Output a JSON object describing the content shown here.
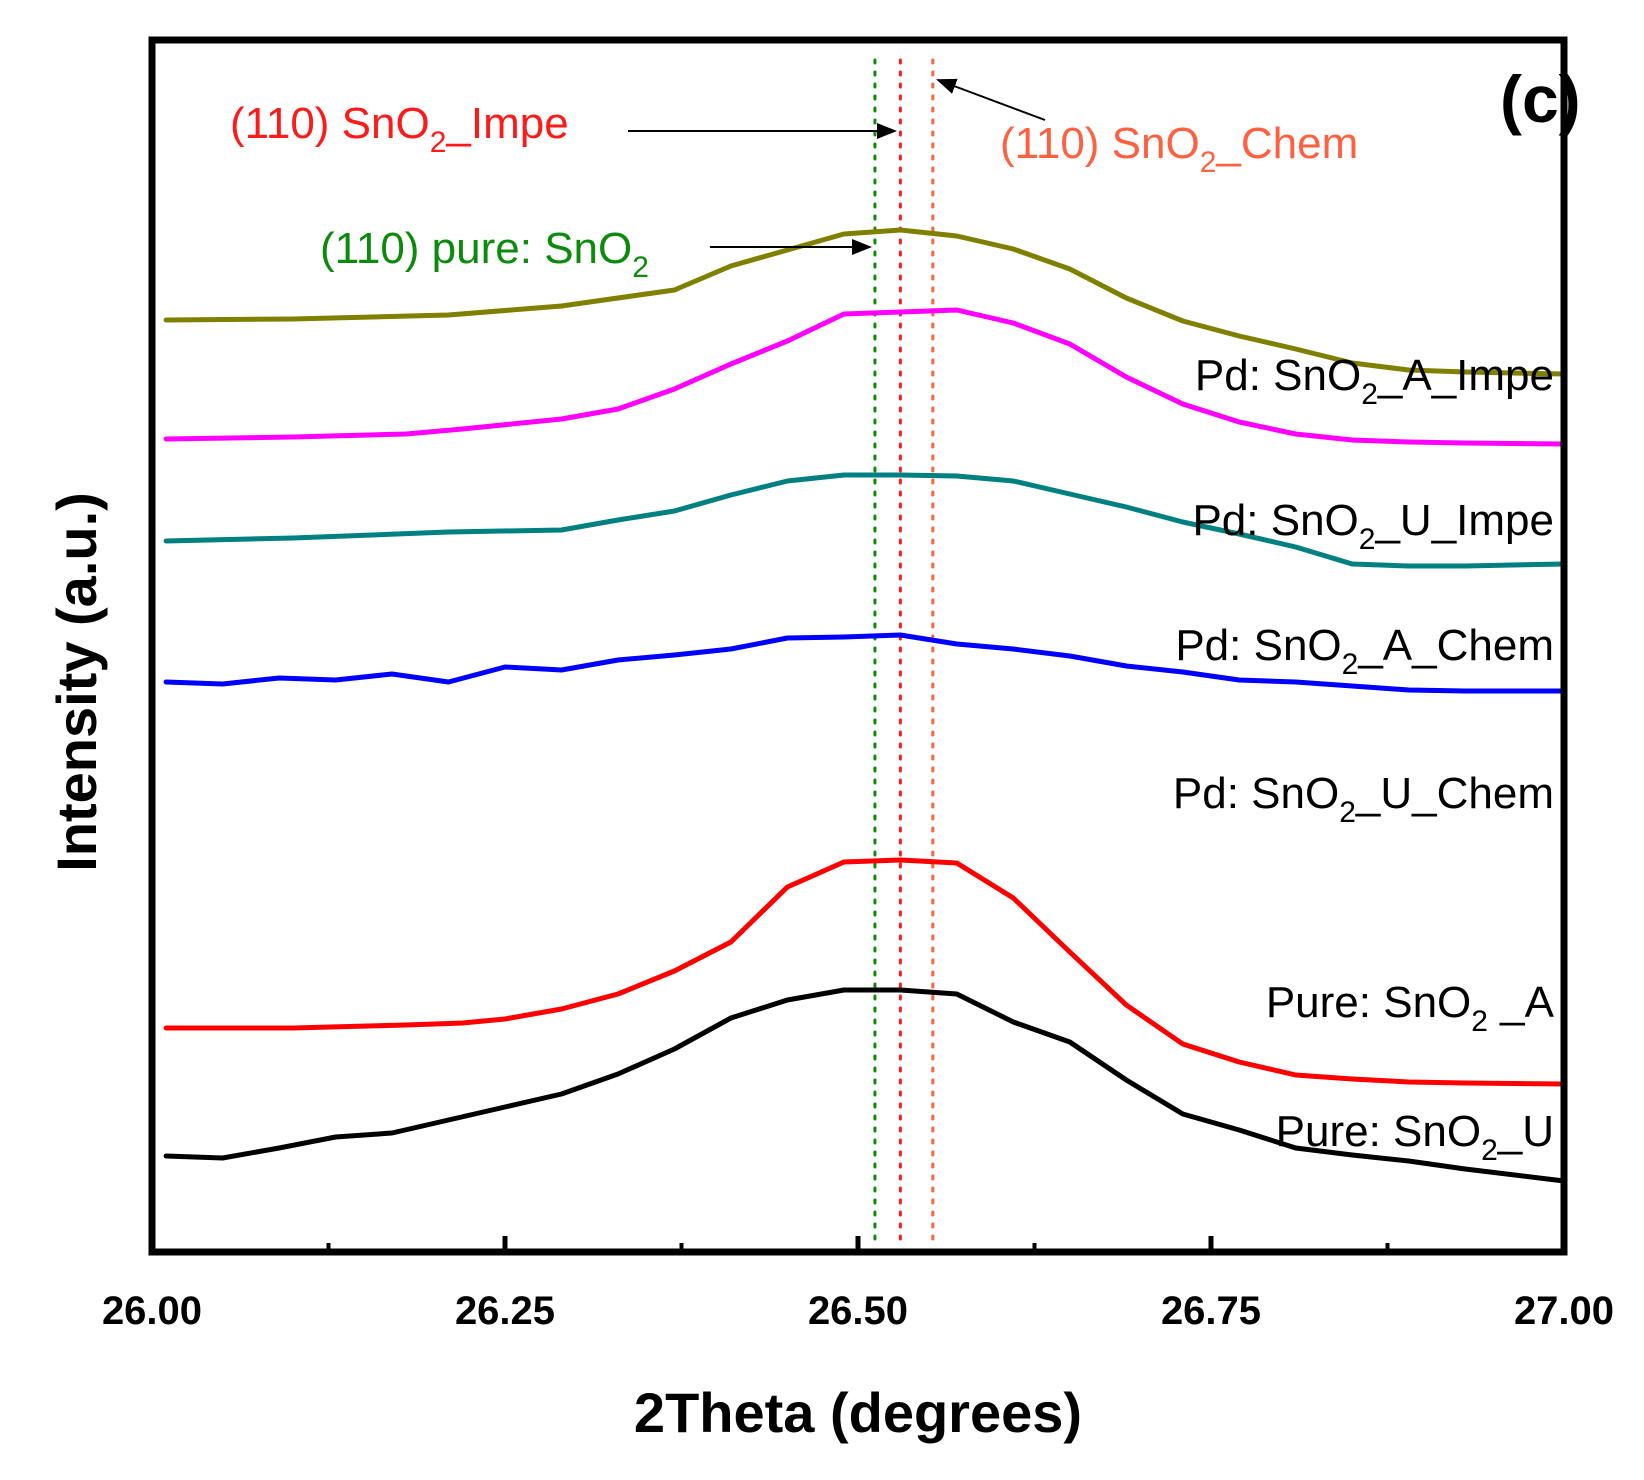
{
  "chart_data": {
    "type": "line",
    "panel_label": "(c)",
    "xlabel": "2Theta (degrees)",
    "ylabel": "Intensity (a.u.)",
    "xlim": [
      26.0,
      27.0
    ],
    "xticks": [
      "26.00",
      "26.25",
      "26.50",
      "26.75",
      "27.00"
    ],
    "y_ticks_shown": false,
    "grid": false,
    "series": [
      {
        "name_main": "Pd: SnO",
        "name_sub": "2",
        "name_tail": "_A_Impe",
        "color": "#808000",
        "x": [
          26.01,
          26.1,
          26.21,
          26.29,
          26.37,
          26.41,
          26.45,
          26.49,
          26.53,
          26.57,
          26.61,
          26.65,
          26.69,
          26.73,
          26.77,
          26.81,
          26.85,
          26.89,
          26.93,
          27.0
        ],
        "y": [
          4.22,
          4.23,
          4.27,
          4.36,
          4.52,
          4.76,
          4.92,
          5.08,
          5.12,
          5.06,
          4.93,
          4.73,
          4.44,
          4.21,
          4.06,
          3.93,
          3.79,
          3.72,
          3.7,
          3.68
        ]
      },
      {
        "name_main": "Pd: SnO",
        "name_sub": "2",
        "name_tail": "_U_Impe",
        "color": "#FF00FF",
        "x": [
          26.01,
          26.1,
          26.18,
          26.22,
          26.29,
          26.33,
          26.37,
          26.41,
          26.45,
          26.49,
          26.53,
          26.57,
          26.61,
          26.65,
          26.69,
          26.73,
          26.77,
          26.81,
          26.85,
          26.89,
          26.93,
          27.0
        ],
        "y": [
          3.03,
          3.05,
          3.08,
          3.13,
          3.23,
          3.33,
          3.53,
          3.78,
          4.01,
          4.28,
          4.3,
          4.32,
          4.19,
          3.98,
          3.65,
          3.38,
          3.2,
          3.08,
          3.02,
          3.0,
          2.99,
          2.98
        ]
      },
      {
        "name_main": "Pd: SnO",
        "name_sub": "2",
        "name_tail": "_A_Chem",
        "color": "#008080",
        "x": [
          26.01,
          26.1,
          26.21,
          26.29,
          26.33,
          26.37,
          26.41,
          26.45,
          26.49,
          26.53,
          26.57,
          26.61,
          26.65,
          26.69,
          26.73,
          26.77,
          26.81,
          26.85,
          26.89,
          26.93,
          27.0
        ],
        "y": [
          2.01,
          2.04,
          2.1,
          2.12,
          2.22,
          2.31,
          2.47,
          2.61,
          2.67,
          2.67,
          2.66,
          2.61,
          2.48,
          2.35,
          2.2,
          2.08,
          1.95,
          1.78,
          1.76,
          1.76,
          1.78
        ]
      },
      {
        "name_main": "Pd: SnO",
        "name_sub": "2",
        "name_tail": "_U_Chem",
        "color": "#0000FF",
        "x": [
          26.01,
          26.05,
          26.09,
          26.13,
          26.17,
          26.21,
          26.25,
          26.29,
          26.33,
          26.37,
          26.41,
          26.45,
          26.49,
          26.53,
          26.57,
          26.61,
          26.65,
          26.69,
          26.73,
          26.77,
          26.81,
          26.85,
          26.89,
          26.93,
          27.0
        ],
        "y": [
          0.6,
          0.58,
          0.64,
          0.62,
          0.68,
          0.6,
          0.75,
          0.72,
          0.82,
          0.87,
          0.93,
          1.04,
          1.05,
          1.07,
          0.98,
          0.93,
          0.86,
          0.76,
          0.7,
          0.62,
          0.6,
          0.56,
          0.52,
          0.51,
          0.51
        ]
      },
      {
        "name_main": "Pure: SnO",
        "name_sub": "2",
        "name_tail": " _A",
        "color": "#FF0000",
        "x": [
          26.01,
          26.1,
          26.18,
          26.22,
          26.25,
          26.29,
          26.33,
          26.37,
          26.41,
          26.45,
          26.49,
          26.53,
          26.57,
          26.61,
          26.65,
          26.69,
          26.73,
          26.77,
          26.81,
          26.85,
          26.89,
          26.93,
          27.0
        ],
        "y": [
          -2.86,
          -2.86,
          -2.83,
          -2.81,
          -2.77,
          -2.67,
          -2.52,
          -2.29,
          -2.0,
          -1.45,
          -1.2,
          -1.18,
          -1.21,
          -1.56,
          -2.1,
          -2.63,
          -3.02,
          -3.2,
          -3.33,
          -3.37,
          -3.4,
          -3.41,
          -3.42
        ]
      },
      {
        "name_main": "Pure: SnO",
        "name_sub": "2",
        "name_tail": "_U",
        "color": "#000000",
        "x": [
          26.01,
          26.05,
          26.09,
          26.13,
          26.17,
          26.21,
          26.25,
          26.29,
          26.33,
          26.37,
          26.41,
          26.45,
          26.49,
          26.53,
          26.57,
          26.61,
          26.65,
          26.69,
          26.73,
          26.77,
          26.81,
          26.85,
          26.89,
          26.93,
          27.0
        ],
        "y": [
          -4.14,
          -4.16,
          -4.06,
          -3.95,
          -3.91,
          -3.78,
          -3.65,
          -3.52,
          -3.32,
          -3.07,
          -2.76,
          -2.58,
          -2.48,
          -2.48,
          -2.52,
          -2.8,
          -3.0,
          -3.38,
          -3.72,
          -3.88,
          -4.06,
          -4.13,
          -4.19,
          -4.27,
          -4.39
        ]
      }
    ],
    "reference_lines": [
      {
        "x": 26.512,
        "color": "#0B8A0B",
        "label_main": "(110) pure: SnO",
        "label_sub": "2",
        "label_tail": ""
      },
      {
        "x": 26.53,
        "color": "#FF1A1A",
        "label_main": "(110) SnO",
        "label_sub": "2",
        "label_tail": "_Impe"
      },
      {
        "x": 26.553,
        "color": "#FF6040",
        "label_main": "(110) SnO",
        "label_sub": "2",
        "label_tail": "_Chem"
      }
    ]
  }
}
